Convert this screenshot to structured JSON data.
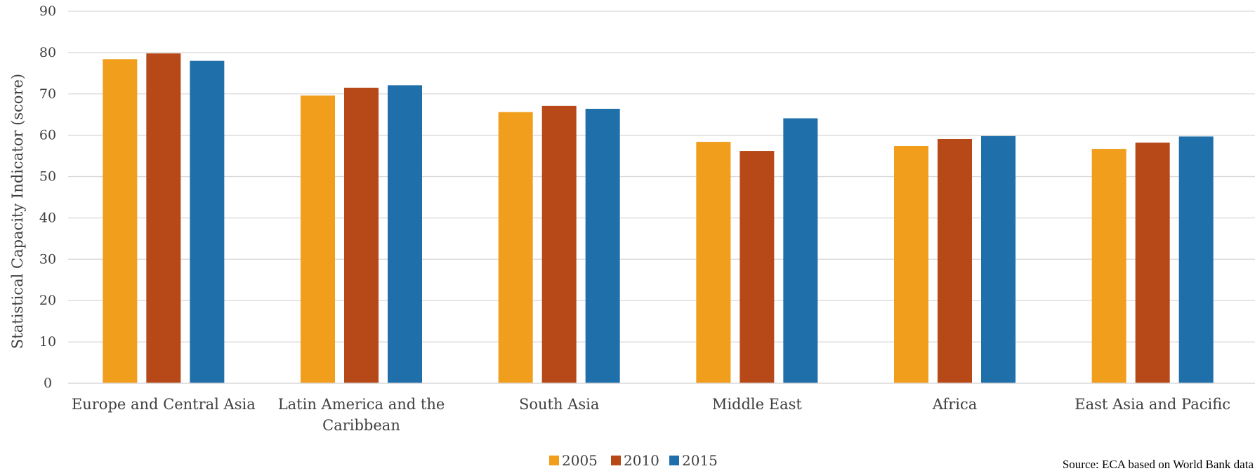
{
  "chart_data": {
    "type": "bar",
    "title": "",
    "xlabel": "",
    "ylabel": "Statistical Capacity Indicator (score)",
    "ylim": [
      0,
      90
    ],
    "yticks": [
      0,
      10,
      20,
      30,
      40,
      50,
      60,
      70,
      80,
      90
    ],
    "grid": true,
    "legend_position": "bottom",
    "categories": [
      [
        "Europe and Central Asia"
      ],
      [
        "Latin America and the",
        "Caribbean"
      ],
      [
        "South Asia"
      ],
      [
        "Middle East"
      ],
      [
        "Africa"
      ],
      [
        "East Asia and Pacific"
      ]
    ],
    "series": [
      {
        "name": "2005",
        "color": "#F09E1C",
        "values": [
          78.4,
          69.6,
          65.6,
          58.4,
          57.4,
          56.7
        ]
      },
      {
        "name": "2010",
        "color": "#B74919",
        "values": [
          79.8,
          71.5,
          67.1,
          56.2,
          59.1,
          58.2
        ]
      },
      {
        "name": "2015",
        "color": "#1F6FAA",
        "values": [
          78.0,
          72.1,
          66.4,
          64.1,
          59.8,
          59.7
        ]
      }
    ],
    "source": "Source: ECA based on World Bank data"
  }
}
